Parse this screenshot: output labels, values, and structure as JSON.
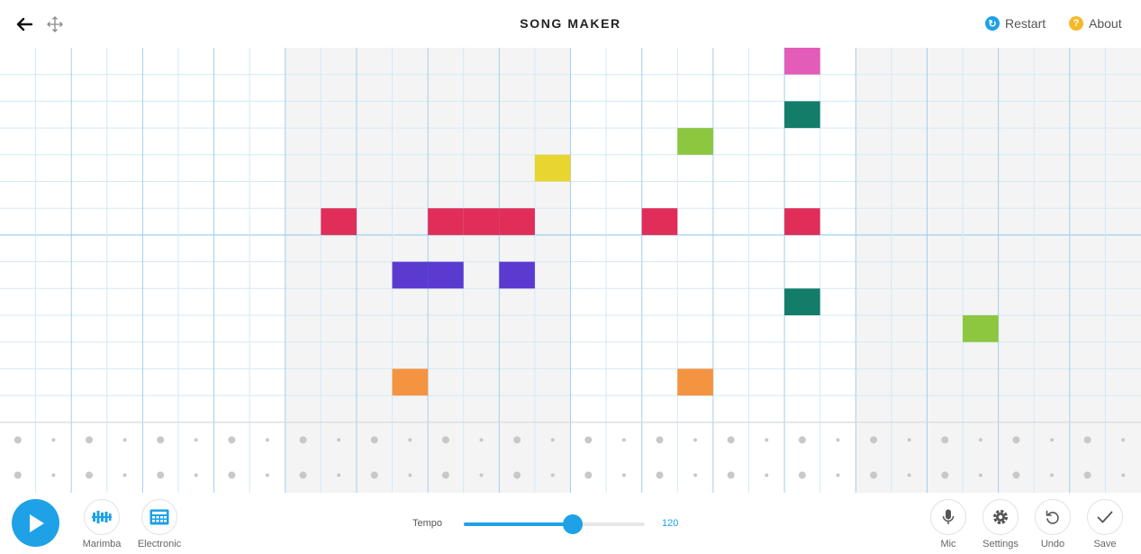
{
  "header": {
    "title": "SONG MAKER",
    "restart_label": "Restart",
    "about_label": "About",
    "back_icon": "back-arrow-icon",
    "move_icon": "move-arrows-icon"
  },
  "grid": {
    "columns": 32,
    "melody_rows": 14,
    "rhythm_rows": 2,
    "shaded_column_ranges": [
      [
        8,
        15
      ],
      [
        24,
        31
      ]
    ],
    "notes": [
      {
        "row": 0,
        "col": 22,
        "color": "#e35cb8"
      },
      {
        "row": 2,
        "col": 22,
        "color": "#137d6a"
      },
      {
        "row": 3,
        "col": 19,
        "color": "#8dc63f"
      },
      {
        "row": 4,
        "col": 15,
        "color": "#e8d52f"
      },
      {
        "row": 6,
        "col": 9,
        "color": "#e02e58"
      },
      {
        "row": 6,
        "col": 12,
        "color": "#e02e58"
      },
      {
        "row": 6,
        "col": 13,
        "color": "#e02e58"
      },
      {
        "row": 6,
        "col": 14,
        "color": "#e02e58"
      },
      {
        "row": 6,
        "col": 18,
        "color": "#e02e58"
      },
      {
        "row": 6,
        "col": 22,
        "color": "#e02e58"
      },
      {
        "row": 8,
        "col": 11,
        "color": "#5b3ad0"
      },
      {
        "row": 8,
        "col": 12,
        "color": "#5b3ad0"
      },
      {
        "row": 8,
        "col": 14,
        "color": "#5b3ad0"
      },
      {
        "row": 9,
        "col": 22,
        "color": "#137d6a"
      },
      {
        "row": 10,
        "col": 27,
        "color": "#8dc63f"
      },
      {
        "row": 12,
        "col": 11,
        "color": "#f59440"
      },
      {
        "row": 12,
        "col": 19,
        "color": "#f59440"
      }
    ],
    "colors": {
      "line_light": "#d3e9f7",
      "line_strong": "#9fd0ef",
      "shade": "#f4f4f4",
      "dot": "#c8c8c8"
    }
  },
  "footer": {
    "play_icon": "play-icon",
    "instrument1_label": "Marimba",
    "instrument2_label": "Electronic",
    "tempo_label": "Tempo",
    "tempo_value": "120",
    "tempo_fraction": 0.6,
    "mic_label": "Mic",
    "settings_label": "Settings",
    "undo_label": "Undo",
    "save_label": "Save"
  },
  "accent": "#1ea1e6"
}
